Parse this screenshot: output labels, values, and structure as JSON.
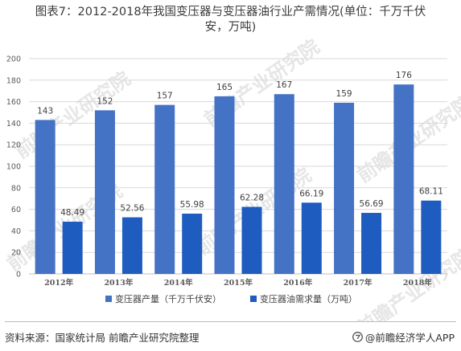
{
  "title_lines": [
    "图表7：2012-2018年我国变压器与变压器油行业产需情况(单位：千万千伏",
    "安，万吨)"
  ],
  "source": "资料来源：国家统计局 前瞻产业研究院整理",
  "brand": "@前瞻经济学人APP",
  "watermark": "前瞻产业研究院",
  "colors": {
    "series1": "#4472c4",
    "series2": "#1f5cbf",
    "grid": "#d9d9d9",
    "axis_text": "#595959"
  },
  "chart_data": {
    "type": "bar",
    "categories": [
      "2012年",
      "2013年",
      "2014年",
      "2015年",
      "2016年",
      "2017年",
      "2018年"
    ],
    "series": [
      {
        "name": "变压器产量（千万千伏安）",
        "values": [
          143,
          152,
          157,
          165,
          167,
          159,
          176
        ],
        "labels": [
          "143",
          "152",
          "157",
          "165",
          "167",
          "159",
          "176"
        ]
      },
      {
        "name": "变压器油需求量（万吨）",
        "values": [
          48.49,
          52.56,
          55.98,
          62.28,
          66.19,
          56.69,
          68.11
        ],
        "labels": [
          "48.49",
          "52.56",
          "55.98",
          "62.28",
          "66.19",
          "56.69",
          "68.11"
        ]
      }
    ],
    "yticks": [
      "0",
      "20",
      "40",
      "60",
      "80",
      "100",
      "120",
      "140",
      "160",
      "180",
      "200"
    ],
    "ylim": [
      0,
      200
    ],
    "grid": true,
    "legend_position": "bottom"
  }
}
